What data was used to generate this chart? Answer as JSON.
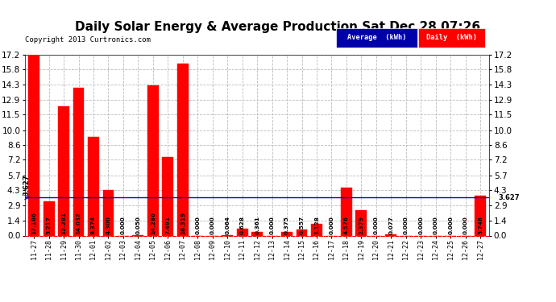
{
  "title": "Daily Solar Energy & Average Production Sat Dec 28 07:26",
  "copyright": "Copyright 2013 Curtronics.com",
  "average_line": 3.627,
  "bar_color": "#FF0000",
  "average_line_color": "#0000CC",
  "background_color": "#FFFFFF",
  "grid_color": "#BBBBBB",
  "ylim": [
    0,
    17.2
  ],
  "yticks": [
    0.0,
    1.4,
    2.9,
    4.3,
    5.7,
    7.2,
    8.6,
    10.0,
    11.5,
    12.9,
    14.3,
    15.8,
    17.2
  ],
  "categories": [
    "11-27",
    "11-28",
    "11-29",
    "11-30",
    "12-01",
    "12-02",
    "12-03",
    "12-04",
    "12-05",
    "12-06",
    "12-07",
    "12-08",
    "12-09",
    "12-10",
    "12-11",
    "12-12",
    "12-13",
    "12-14",
    "12-15",
    "12-16",
    "12-17",
    "12-18",
    "12-19",
    "12-20",
    "12-21",
    "12-22",
    "12-23",
    "12-24",
    "12-25",
    "12-26",
    "12-27"
  ],
  "values": [
    17.186,
    3.217,
    12.281,
    14.032,
    9.374,
    4.3,
    0.0,
    0.05,
    14.286,
    7.491,
    16.319,
    0.0,
    0.0,
    0.064,
    0.628,
    0.361,
    0.0,
    0.375,
    0.557,
    1.128,
    0.0,
    4.576,
    2.379,
    0.0,
    0.077,
    0.0,
    0.0,
    0.0,
    0.0,
    0.0,
    3.748
  ],
  "legend_average_color": "#0000AA",
  "legend_daily_color": "#FF0000",
  "legend_average_text": "Average  (kWh)",
  "legend_daily_text": "Daily  (kWh)",
  "value_label_fontsize": 5.2,
  "avg_label": "3.627",
  "title_fontsize": 11,
  "copyright_fontsize": 6.5,
  "ytick_fontsize": 7.5,
  "xtick_fontsize": 6.0
}
